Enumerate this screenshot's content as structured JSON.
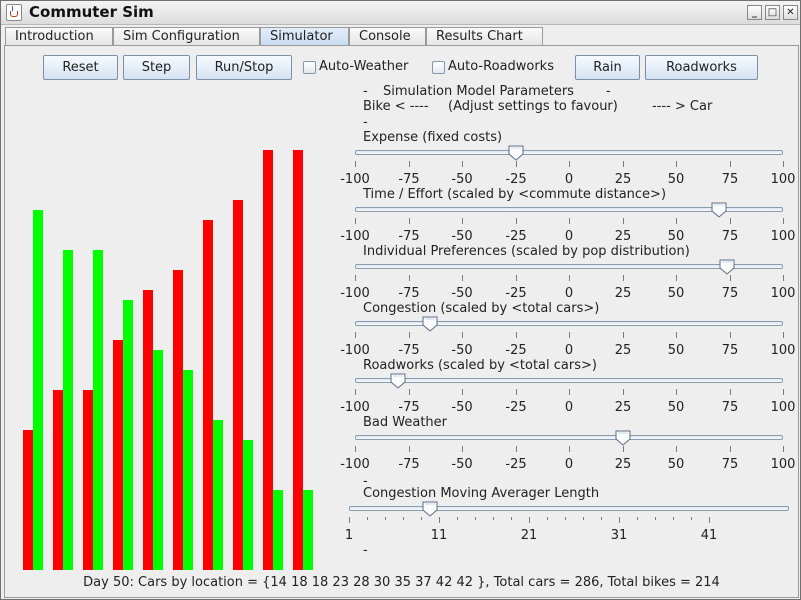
{
  "window": {
    "title": "Commuter Sim",
    "controls": [
      "_",
      "□",
      "✕"
    ]
  },
  "tabs": [
    "Introduction",
    "Sim Configuration",
    "Simulator",
    "Console",
    "Results Chart"
  ],
  "selected_tab": "Simulator",
  "toolbar": {
    "reset": "Reset",
    "step": "Step",
    "runstop": "Run/Stop",
    "auto_weather": "Auto-Weather",
    "auto_roadworks": "Auto-Roadworks",
    "rain": "Rain",
    "roadworks": "Roadworks"
  },
  "params": {
    "dash1": "-",
    "header": "Simulation Model Parameters",
    "dash2": "-",
    "bike": "Bike < ----",
    "adjust": "(Adjust settings to favour)",
    "car": "---- > Car",
    "dash3": "-",
    "sliders": [
      {
        "label": "Expense (fixed costs)",
        "value": -25,
        "ticks": [
          "-100",
          "-75",
          "-50",
          "-25",
          "0",
          "25",
          "50",
          "75",
          "100"
        ]
      },
      {
        "label": "Time / Effort (scaled by <commute distance>)",
        "value": 70,
        "ticks": [
          "-100",
          "-75",
          "-50",
          "-25",
          "0",
          "25",
          "50",
          "75",
          "100"
        ]
      },
      {
        "label": "Individual Preferences (scaled by pop distribution)",
        "value": 74,
        "ticks": [
          "-100",
          "-75",
          "-50",
          "-25",
          "0",
          "25",
          "50",
          "75",
          "100"
        ]
      },
      {
        "label": "Congestion (scaled by <total cars>)",
        "value": -65,
        "ticks": [
          "-100",
          "-75",
          "-50",
          "-25",
          "0",
          "25",
          "50",
          "75",
          "100"
        ]
      },
      {
        "label": "Roadworks (scaled by <total cars>)",
        "value": -80,
        "ticks": [
          "-100",
          "-75",
          "-50",
          "-25",
          "0",
          "25",
          "50",
          "75",
          "100"
        ]
      },
      {
        "label": "Bad Weather",
        "value": 25,
        "ticks": [
          "-100",
          "-75",
          "-50",
          "-25",
          "0",
          "25",
          "50",
          "75",
          "100"
        ]
      }
    ],
    "dash4": "-",
    "mavg": {
      "label": "Congestion Moving Averager Length",
      "value": 10,
      "ticks": [
        "1",
        "11",
        "21",
        "31",
        "41"
      ]
    },
    "dash5": "-"
  },
  "chart_data": {
    "type": "bar",
    "categories": [
      "1",
      "2",
      "3",
      "4",
      "5",
      "6",
      "7",
      "8",
      "9",
      "10"
    ],
    "series": [
      {
        "values": [
          14,
          18,
          18,
          23,
          28,
          30,
          35,
          37,
          42,
          42
        ],
        "color": "#ff0000"
      },
      {
        "values": [
          36,
          32,
          32,
          27,
          22,
          20,
          15,
          13,
          8,
          8
        ],
        "color": "#00ff00"
      }
    ],
    "ylim": [
      0,
      42
    ]
  },
  "status": "Day 50: Cars by location = {14 18 18 23 28 30 35 37 42 42 }, Total cars = 286, Total bikes = 214"
}
